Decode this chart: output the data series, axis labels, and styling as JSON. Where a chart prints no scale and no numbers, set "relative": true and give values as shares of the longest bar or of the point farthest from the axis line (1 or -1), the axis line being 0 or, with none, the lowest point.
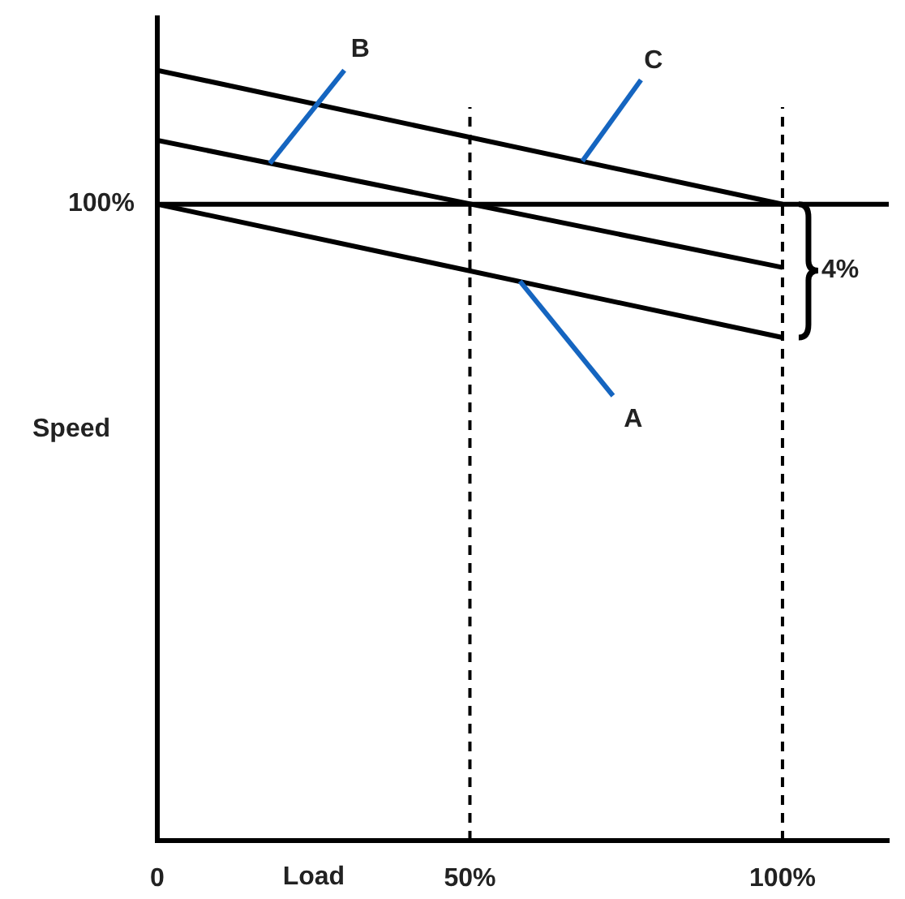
{
  "chart_data": {
    "type": "line",
    "xlabel": "Load",
    "ylabel": "Speed",
    "relative": true,
    "xlim": [
      0,
      117
    ],
    "xticks": [
      {
        "value": 0,
        "label": "0"
      },
      {
        "value": 50,
        "label": "50%"
      },
      {
        "value": 100,
        "label": "100%"
      }
    ],
    "x": [
      0,
      100
    ],
    "series": [
      {
        "color": "#000000",
        "values": [
          0.826,
          0.653
        ]
      },
      {
        "color": "#000000",
        "values": [
          0.909,
          0.744
        ]
      },
      {
        "color": "#000000",
        "values": [
          1,
          0.826
        ]
      }
    ],
    "marker": "none",
    "grid": false,
    "legend": false,
    "ref_lines": [
      {
        "axis": "y",
        "value": 0.826,
        "label": null,
        "line_style": "solid"
      },
      {
        "axis": "x",
        "value": 50,
        "label": null,
        "line_style": "dashed"
      },
      {
        "axis": "x",
        "value": 100,
        "label": null,
        "line_style": "dashed"
      }
    ],
    "annotations": [
      "100%",
      {
        "text": "A",
        "x": 58,
        "y": 0.726
      },
      {
        "text": "B",
        "x": 18,
        "y": 0.879
      },
      {
        "text": "C",
        "x": 68,
        "y": 0.882
      },
      {
        "text": "4%",
        "x": 100,
        "y": 0.74
      }
    ]
  }
}
